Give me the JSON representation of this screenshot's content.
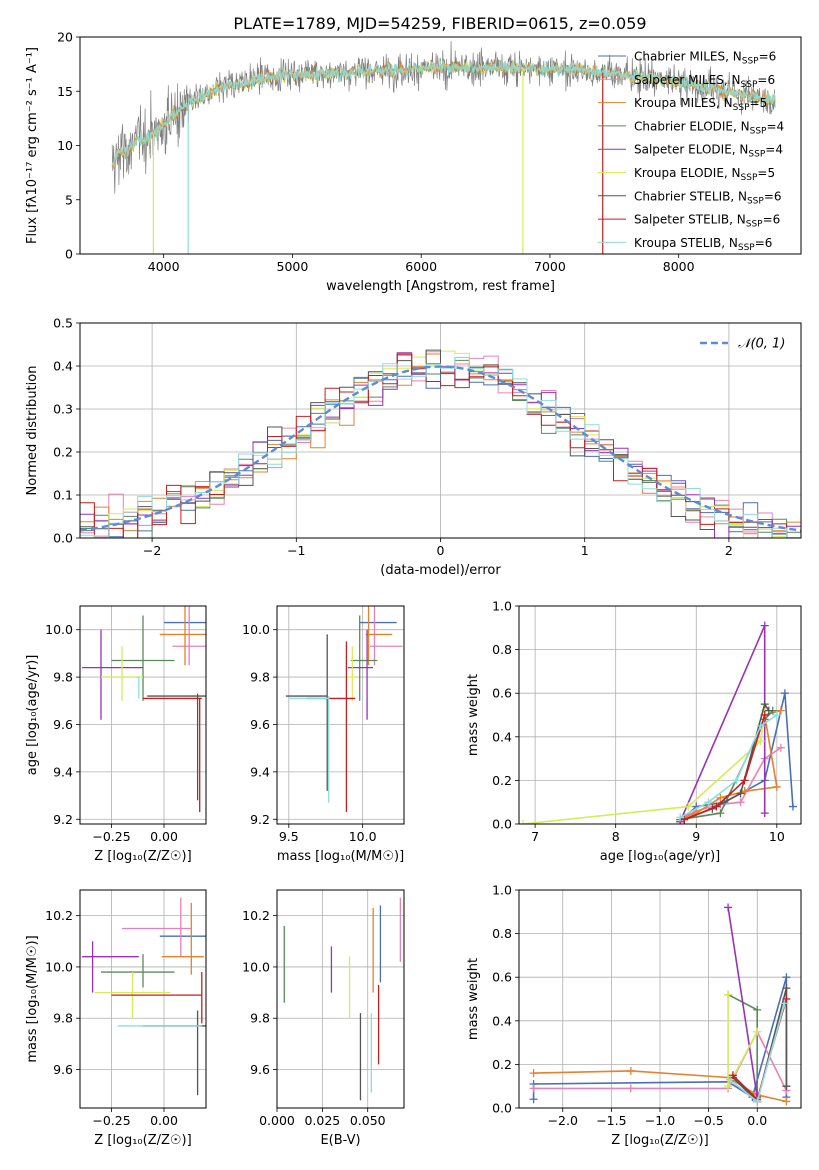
{
  "figure": {
    "title": "PLATE=1789, MJD=54259, FIBERID=0615, z=0.059"
  },
  "series": [
    {
      "name": "Chabrier MILES",
      "nssp": "6",
      "color": "#4a6fb3"
    },
    {
      "name": "Salpeter MILES",
      "nssp": "6",
      "color": "#e882b6"
    },
    {
      "name": "Kroupa MILES",
      "nssp": "5",
      "color": "#e6812d"
    },
    {
      "name": "Chabrier ELODIE",
      "nssp": "4",
      "color": "#5a8a5a"
    },
    {
      "name": "Salpeter ELODIE",
      "nssp": "4",
      "color": "#9a32b4"
    },
    {
      "name": "Kroupa ELODIE",
      "nssp": "5",
      "color": "#d7ea5a"
    },
    {
      "name": "Chabrier STELIB",
      "nssp": "6",
      "color": "#555555"
    },
    {
      "name": "Salpeter STELIB",
      "nssp": "6",
      "color": "#c81e1e"
    },
    {
      "name": "Kroupa STELIB",
      "nssp": "6",
      "color": "#8fdcdc"
    }
  ],
  "chart_data": [
    {
      "id": "spectrum",
      "type": "line",
      "title": "PLATE=1789, MJD=54259, FIBERID=0615, z=0.059",
      "xlabel": "wavelength [Angstrom, rest frame]",
      "ylabel": "Flux [fλ10⁻¹⁷ erg cm⁻² s⁻¹ A⁻¹]",
      "xlim": [
        3350,
        8950
      ],
      "ylim": [
        0,
        20
      ],
      "xticks": [
        "4000",
        "5000",
        "6000",
        "7000",
        "8000"
      ],
      "yticks": [
        "0",
        "5",
        "10",
        "15",
        "20"
      ],
      "legend_position": "right",
      "data_range_x": [
        3600,
        8750
      ],
      "continuum": {
        "x": [
          3600,
          3650,
          3700,
          3800,
          3900,
          4000,
          4100,
          4200,
          4300,
          4400,
          4500,
          4700,
          4900,
          5100,
          5300,
          5500,
          5800,
          6000,
          6300,
          6600,
          6900,
          7200,
          7500,
          7800,
          8100,
          8400,
          8700
        ],
        "y": [
          8.0,
          9.5,
          9.2,
          10.5,
          10.8,
          12.0,
          13.0,
          14.0,
          14.5,
          15.0,
          15.5,
          16.0,
          16.5,
          16.6,
          16.6,
          16.8,
          17.0,
          17.1,
          17.2,
          17.2,
          17.1,
          17.0,
          16.6,
          16.2,
          15.6,
          15.0,
          14.2
        ]
      },
      "notes": "observed spectrum (grey) with 9 model fits overlapping; vertical spikes near 3920, 4190, 6790, 7410 A"
    },
    {
      "id": "residuals",
      "type": "histogram",
      "xlabel": "(data-model)/error",
      "ylabel": "Normed distribution",
      "xlim": [
        -2.5,
        2.5
      ],
      "ylim": [
        0,
        0.5
      ],
      "xticks": [
        "−2",
        "−1",
        "0",
        "1",
        "2"
      ],
      "yticks": [
        "0.0",
        "0.1",
        "0.2",
        "0.3",
        "0.4",
        "0.5"
      ],
      "grid": true,
      "legend": "𝒩(0, 1)",
      "legend_position": "top-right",
      "bin_width": 0.1,
      "reference_curve": "standard normal",
      "series_color_order": [
        "#4a6fb3",
        "#e882b6",
        "#e6812d",
        "#5a8a5a",
        "#9a32b4",
        "#d7ea5a",
        "#555555",
        "#c81e1e",
        "#8fdcdc"
      ]
    },
    {
      "id": "age-vs-Z",
      "type": "scatter",
      "xlabel": "Z [log₁₀(Z/Z☉)]",
      "ylabel": "age  [log₁₀(age/yr)]",
      "xlim": [
        -0.4,
        0.2
      ],
      "ylim": [
        9.18,
        10.1
      ],
      "xticks": [
        "−0.25",
        "0.00"
      ],
      "yticks": [
        "9.2",
        "9.4",
        "9.6",
        "9.8",
        "10.0"
      ],
      "grid": true,
      "points": [
        {
          "s": 0,
          "x": 0.1,
          "xe": [
            0.0,
            0.2
          ],
          "y": 10.03,
          "ye": [
            10.03,
            10.03
          ]
        },
        {
          "s": 1,
          "x": 0.12,
          "xe": [
            0.04,
            0.22
          ],
          "y": 9.93,
          "ye": [
            9.85,
            10.11
          ]
        },
        {
          "s": 2,
          "x": 0.1,
          "xe": [
            -0.02,
            0.2
          ],
          "y": 9.98,
          "ye": [
            9.85,
            10.1
          ]
        },
        {
          "s": 3,
          "x": -0.1,
          "xe": [
            -0.25,
            0.05
          ],
          "y": 9.87,
          "ye": [
            9.7,
            10.06
          ]
        },
        {
          "s": 4,
          "x": -0.3,
          "xe": [
            -0.39,
            -0.1
          ],
          "y": 9.84,
          "ye": [
            9.62,
            10.0
          ]
        },
        {
          "s": 5,
          "x": -0.2,
          "xe": [
            -0.3,
            -0.1
          ],
          "y": 9.8,
          "ye": [
            9.7,
            9.93
          ]
        },
        {
          "s": 6,
          "x": 0.16,
          "xe": [
            -0.08,
            0.21
          ],
          "y": 9.72,
          "ye": [
            9.28,
            9.73
          ]
        },
        {
          "s": 7,
          "x": 0.17,
          "xe": [
            -0.1,
            0.18
          ],
          "y": 9.71,
          "ye": [
            9.23,
            9.71
          ]
        },
        {
          "s": 8,
          "x": -0.12,
          "xe": [
            -0.13,
            -0.12
          ],
          "y": 9.8,
          "ye": [
            9.71,
            9.8
          ]
        }
      ]
    },
    {
      "id": "age-vs-mass",
      "type": "scatter",
      "xlabel": "mass [log₁₀(M/M☉)]",
      "ylabel": "",
      "xlim": [
        9.42,
        10.28
      ],
      "ylim": [
        9.18,
        10.1
      ],
      "xticks": [
        "9.5",
        "10.0"
      ],
      "yticks": [
        "9.2",
        "9.4",
        "9.6",
        "9.8",
        "10.0"
      ],
      "grid": true,
      "points": [
        {
          "s": 0,
          "x": 10.09,
          "xe": [
            9.98,
            10.23
          ],
          "y": 10.03,
          "ye": [
            10.03,
            10.03
          ]
        },
        {
          "s": 1,
          "x": 10.08,
          "xe": [
            10.05,
            10.27
          ],
          "y": 9.93,
          "ye": [
            9.85,
            10.11
          ]
        },
        {
          "s": 2,
          "x": 10.04,
          "xe": [
            10.02,
            10.2
          ],
          "y": 9.98,
          "ye": [
            9.85,
            10.1
          ]
        },
        {
          "s": 3,
          "x": 9.98,
          "xe": [
            9.92,
            10.1
          ],
          "y": 9.87,
          "ye": [
            9.7,
            10.06
          ]
        },
        {
          "s": 4,
          "x": 10.03,
          "xe": [
            9.9,
            10.07
          ],
          "y": 9.84,
          "ye": [
            9.62,
            10.0
          ]
        },
        {
          "s": 5,
          "x": 9.93,
          "xe": [
            9.88,
            9.96
          ],
          "y": 9.8,
          "ye": [
            9.7,
            9.93
          ]
        },
        {
          "s": 6,
          "x": 9.76,
          "xe": [
            9.48,
            9.76
          ],
          "y": 9.72,
          "ye": [
            9.32,
            9.98
          ]
        },
        {
          "s": 7,
          "x": 9.89,
          "xe": [
            9.62,
            9.95
          ],
          "y": 9.71,
          "ye": [
            9.23,
            9.95
          ]
        },
        {
          "s": 8,
          "x": 9.77,
          "xe": [
            9.5,
            9.77
          ],
          "y": 9.71,
          "ye": [
            9.27,
            9.72
          ]
        }
      ]
    },
    {
      "id": "mass-weight-vs-age",
      "type": "line",
      "xlabel": "age  [log₁₀(age/yr)]",
      "ylabel": "mass weight",
      "xlim": [
        6.8,
        10.3
      ],
      "ylim": [
        0,
        1.0
      ],
      "xticks": [
        "7",
        "8",
        "9",
        "10"
      ],
      "yticks": [
        "0.0",
        "0.2",
        "0.4",
        "0.6",
        "0.8",
        "1.0"
      ],
      "grid": true,
      "series": [
        {
          "s": 0,
          "x": [
            8.85,
            9.0,
            9.35,
            9.6,
            9.85,
            10.1,
            10.2
          ],
          "y": [
            0.03,
            0.08,
            0.1,
            0.15,
            0.2,
            0.6,
            0.08
          ]
        },
        {
          "s": 1,
          "x": [
            8.85,
            9.0,
            9.3,
            9.55,
            9.85,
            10.05
          ],
          "y": [
            0.03,
            0.06,
            0.09,
            0.1,
            0.3,
            0.35
          ]
        },
        {
          "s": 2,
          "x": [
            8.8,
            9.0,
            9.3,
            9.6,
            10.0,
            9.85,
            10.05
          ],
          "y": [
            0.02,
            0.05,
            0.12,
            0.15,
            0.17,
            0.5,
            0.52
          ]
        },
        {
          "s": 3,
          "x": [
            8.8,
            9.3,
            9.85,
            9.95
          ],
          "y": [
            0.02,
            0.05,
            0.48,
            0.52
          ]
        },
        {
          "s": 4,
          "x": [
            8.8,
            9.85,
            9.85
          ],
          "y": [
            0.01,
            0.91,
            0.05
          ]
        },
        {
          "s": 5,
          "x": [
            6.85,
            8.9,
            9.8,
            9.85
          ],
          "y": [
            0.0,
            0.08,
            0.38,
            0.52
          ]
        },
        {
          "s": 6,
          "x": [
            8.85,
            9.2,
            9.55,
            9.85,
            9.9
          ],
          "y": [
            0.02,
            0.07,
            0.14,
            0.55,
            0.52
          ]
        },
        {
          "s": 7,
          "x": [
            8.85,
            9.25,
            9.6,
            9.85
          ],
          "y": [
            0.02,
            0.08,
            0.2,
            0.5
          ]
        },
        {
          "s": 8,
          "x": [
            8.8,
            9.15,
            9.5,
            9.8,
            10.0
          ],
          "y": [
            0.03,
            0.1,
            0.2,
            0.45,
            0.5
          ]
        }
      ]
    },
    {
      "id": "mass-vs-Z",
      "type": "scatter",
      "xlabel": "Z [log₁₀(Z/Z☉)]",
      "ylabel": "mass [log₁₀(M/M☉)]",
      "xlim": [
        -0.4,
        0.2
      ],
      "ylim": [
        9.45,
        10.3
      ],
      "xticks": [
        "−0.25",
        "0.00"
      ],
      "yticks": [
        "9.6",
        "9.8",
        "10.0",
        "10.2"
      ],
      "grid": true,
      "points": [
        {
          "s": 0,
          "x": 0.1,
          "xe": [
            -0.02,
            0.2
          ],
          "y": 10.12,
          "ye": [
            10.12,
            10.12
          ]
        },
        {
          "s": 1,
          "x": 0.08,
          "xe": [
            -0.2,
            0.13
          ],
          "y": 10.15,
          "ye": [
            10.04,
            10.27
          ]
        },
        {
          "s": 2,
          "x": 0.13,
          "xe": [
            -0.01,
            0.19
          ],
          "y": 10.04,
          "ye": [
            9.97,
            10.25
          ]
        },
        {
          "s": 3,
          "x": -0.1,
          "xe": [
            -0.3,
            0.05
          ],
          "y": 9.98,
          "ye": [
            9.92,
            10.05
          ]
        },
        {
          "s": 4,
          "x": -0.34,
          "xe": [
            -0.39,
            -0.12
          ],
          "y": 10.04,
          "ye": [
            9.9,
            10.1
          ]
        },
        {
          "s": 5,
          "x": -0.15,
          "xe": [
            -0.33,
            0.03
          ],
          "y": 9.9,
          "ye": [
            9.8,
            9.98
          ]
        },
        {
          "s": 6,
          "x": 0.16,
          "xe": [
            -0.1,
            0.21
          ],
          "y": 9.77,
          "ye": [
            9.5,
            9.83
          ]
        },
        {
          "s": 7,
          "x": 0.18,
          "xe": [
            -0.25,
            0.18
          ],
          "y": 9.89,
          "ye": [
            9.78,
            9.98
          ]
        },
        {
          "s": 8,
          "x": -0.2,
          "xe": [
            -0.22,
            0.18
          ],
          "y": 9.77,
          "ye": [
            9.77,
            9.77
          ]
        }
      ]
    },
    {
      "id": "mass-vs-ebv",
      "type": "scatter",
      "xlabel": "E(B-V)",
      "ylabel": "",
      "xlim": [
        0.0,
        0.07
      ],
      "ylim": [
        9.45,
        10.3
      ],
      "xticks": [
        "0.000",
        "0.025",
        "0.050"
      ],
      "yticks": [
        "9.6",
        "9.8",
        "10.0",
        "10.2"
      ],
      "grid": true,
      "points": [
        {
          "s": 0,
          "x": 0.057,
          "ye": [
            9.94,
            10.24
          ]
        },
        {
          "s": 1,
          "x": 0.068,
          "ye": [
            10.02,
            10.27
          ]
        },
        {
          "s": 2,
          "x": 0.053,
          "ye": [
            9.9,
            10.23
          ]
        },
        {
          "s": 3,
          "x": 0.004,
          "ye": [
            9.86,
            10.16
          ]
        },
        {
          "s": 4,
          "x": 0.03,
          "ye": [
            9.9,
            10.08
          ]
        },
        {
          "s": 5,
          "x": 0.04,
          "ye": [
            9.8,
            10.04
          ]
        },
        {
          "s": 6,
          "x": 0.046,
          "ye": [
            9.48,
            9.82
          ]
        },
        {
          "s": 7,
          "x": 0.056,
          "ye": [
            9.62,
            9.93
          ]
        },
        {
          "s": 8,
          "x": 0.052,
          "ye": [
            9.51,
            9.82
          ]
        }
      ]
    },
    {
      "id": "mass-weight-vs-Z",
      "type": "line",
      "xlabel": "Z [log₁₀(Z/Z☉)]",
      "ylabel": "mass weight",
      "xlim": [
        -2.45,
        0.45
      ],
      "ylim": [
        0,
        1.0
      ],
      "xticks": [
        "−2.0",
        "−1.5",
        "−1.0",
        "−0.5",
        "0.0"
      ],
      "yticks": [
        "0.0",
        "0.2",
        "0.4",
        "0.6",
        "0.8",
        "1.0"
      ],
      "grid": true,
      "series": [
        {
          "s": 0,
          "x": [
            -2.3,
            -2.3,
            -0.3,
            -0.05,
            0.3,
            0.3
          ],
          "y": [
            0.04,
            0.11,
            0.12,
            0.05,
            0.6,
            0.05
          ]
        },
        {
          "s": 1,
          "x": [
            -2.3,
            -1.3,
            -0.3,
            0.0,
            0.3
          ],
          "y": [
            0.09,
            0.09,
            0.09,
            0.35,
            0.08
          ]
        },
        {
          "s": 2,
          "x": [
            -2.3,
            -1.3,
            -0.3,
            0.0,
            0.3
          ],
          "y": [
            0.16,
            0.17,
            0.14,
            0.06,
            0.03
          ]
        },
        {
          "s": 3,
          "x": [
            -0.3,
            0.0,
            0.0
          ],
          "y": [
            0.52,
            0.45,
            0.03
          ]
        },
        {
          "s": 4,
          "x": [
            -0.3,
            0.0,
            0.0
          ],
          "y": [
            0.92,
            0.05,
            0.03
          ]
        },
        {
          "s": 5,
          "x": [
            -0.3,
            -0.3,
            0.0
          ],
          "y": [
            0.52,
            0.1,
            0.35
          ]
        },
        {
          "s": 6,
          "x": [
            -0.25,
            0.0,
            0.3,
            0.3
          ],
          "y": [
            0.14,
            0.03,
            0.55,
            0.1
          ]
        },
        {
          "s": 7,
          "x": [
            -0.25,
            0.0,
            0.3
          ],
          "y": [
            0.15,
            0.04,
            0.5
          ]
        },
        {
          "s": 8,
          "x": [
            -0.28,
            0.0,
            0.28
          ],
          "y": [
            0.13,
            0.03,
            0.48
          ]
        }
      ]
    }
  ]
}
